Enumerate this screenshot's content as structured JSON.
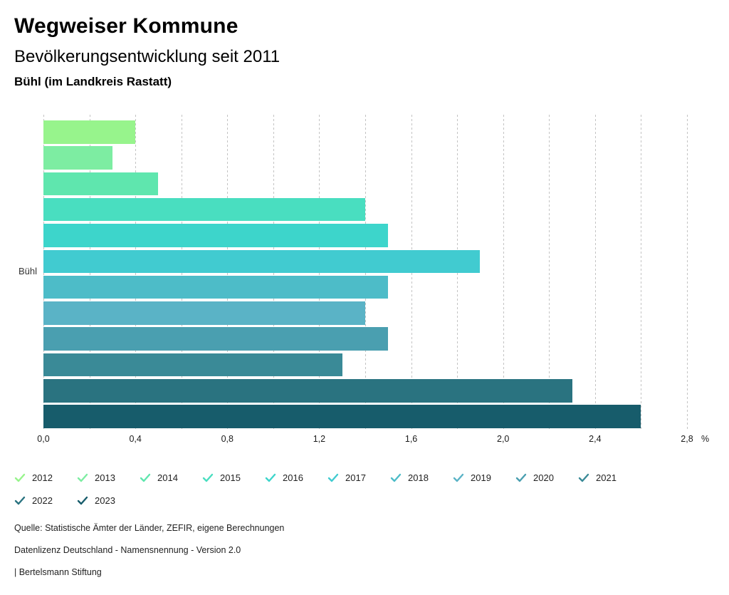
{
  "header": {
    "title": "Wegweiser Kommune",
    "subtitle": "Bevölkerungsentwicklung seit 2011",
    "region": "Bühl (im Landkreis Rastatt)"
  },
  "chart_data": {
    "type": "bar",
    "orientation": "horizontal",
    "title": "Bevölkerungsentwicklung seit 2011",
    "group_label": "Bühl",
    "unit": "%",
    "xlim": [
      0,
      2.8
    ],
    "gridline_step": 0.2,
    "grid": "dotted-vertical",
    "legend_position": "bottom",
    "categories": [
      "2012",
      "2013",
      "2014",
      "2015",
      "2016",
      "2017",
      "2018",
      "2019",
      "2020",
      "2021",
      "2022",
      "2023"
    ],
    "values": [
      0.4,
      0.3,
      0.5,
      1.4,
      1.5,
      1.9,
      1.5,
      1.4,
      1.5,
      1.3,
      2.3,
      2.6
    ],
    "series": [
      {
        "year": "2012",
        "value": 0.4,
        "color": "#97f48c"
      },
      {
        "year": "2013",
        "value": 0.3,
        "color": "#7deda2"
      },
      {
        "year": "2014",
        "value": 0.5,
        "color": "#5fe6ae"
      },
      {
        "year": "2015",
        "value": 1.4,
        "color": "#49dec0"
      },
      {
        "year": "2016",
        "value": 1.5,
        "color": "#3dd5cb"
      },
      {
        "year": "2017",
        "value": 1.9,
        "color": "#41cbd0"
      },
      {
        "year": "2018",
        "value": 1.5,
        "color": "#4dbcc8"
      },
      {
        "year": "2019",
        "value": 1.4,
        "color": "#5ab3c6"
      },
      {
        "year": "2020",
        "value": 1.5,
        "color": "#4a9fb0"
      },
      {
        "year": "2021",
        "value": 1.3,
        "color": "#3a8a97"
      },
      {
        "year": "2022",
        "value": 2.3,
        "color": "#2a7380"
      },
      {
        "year": "2023",
        "value": 2.6,
        "color": "#175c6b"
      }
    ],
    "x_ticks": [
      {
        "label": "0,0",
        "value": 0.0
      },
      {
        "label": "0,4",
        "value": 0.4
      },
      {
        "label": "0,8",
        "value": 0.8
      },
      {
        "label": "1,2",
        "value": 1.2
      },
      {
        "label": "1,6",
        "value": 1.6
      },
      {
        "label": "2,0",
        "value": 2.0
      },
      {
        "label": "2,4",
        "value": 2.4
      },
      {
        "label": "2,8",
        "value": 2.8
      }
    ],
    "gridline_color": "#c3c3c3"
  },
  "legend": {
    "checkmark_icon": "check-icon"
  },
  "footer": {
    "source": "Quelle: Statistische Ämter der Länder, ZEFIR, eigene Berechnungen",
    "license": "Datenlizenz Deutschland - Namensnennung - Version 2.0",
    "attribution": "| Bertelsmann Stiftung"
  }
}
